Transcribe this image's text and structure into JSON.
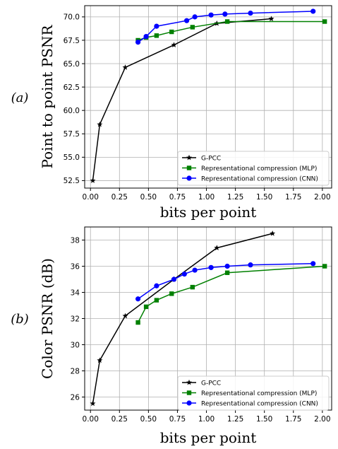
{
  "chart_data": [
    {
      "type": "line",
      "panel_label": "(a)",
      "xlabel": "bits per point",
      "ylabel": "Point to point PSNR",
      "xlim": [
        -0.05,
        2.08
      ],
      "ylim": [
        51.7,
        71.2
      ],
      "xticks": [
        0.0,
        0.25,
        0.5,
        0.75,
        1.0,
        1.25,
        1.5,
        1.75,
        2.0
      ],
      "xtick_labels": [
        "0.00",
        "0.25",
        "0.50",
        "0.75",
        "1.00",
        "1.25",
        "1.50",
        "1.75",
        "2.00"
      ],
      "yticks": [
        52.5,
        55.0,
        57.5,
        60.0,
        62.5,
        65.0,
        67.5,
        70.0
      ],
      "ytick_labels": [
        "52.5",
        "55.0",
        "57.5",
        "60.0",
        "62.5",
        "65.0",
        "67.5",
        "70.0"
      ],
      "grid": true,
      "legend_position": "lower-right",
      "series": [
        {
          "name": "G-PCC",
          "color": "#000000",
          "marker": "star",
          "x": [
            0.02,
            0.08,
            0.3,
            0.72,
            1.09,
            1.56
          ],
          "y": [
            52.5,
            58.5,
            64.6,
            67.0,
            69.3,
            69.8
          ]
        },
        {
          "name": "Representational compression (MLP)",
          "color": "#008000",
          "marker": "square",
          "x": [
            0.41,
            0.48,
            0.57,
            0.7,
            0.88,
            1.18,
            2.02
          ],
          "y": [
            67.5,
            67.8,
            68.0,
            68.4,
            68.9,
            69.5,
            69.5
          ]
        },
        {
          "name": "Representational compression (CNN)",
          "color": "#0000ff",
          "marker": "circle",
          "x": [
            0.41,
            0.48,
            0.57,
            0.83,
            0.9,
            1.04,
            1.16,
            1.38,
            1.92
          ],
          "y": [
            67.3,
            67.9,
            69.0,
            69.6,
            70.0,
            70.2,
            70.3,
            70.4,
            70.6
          ]
        }
      ]
    },
    {
      "type": "line",
      "panel_label": "(b)",
      "xlabel": "bits per point",
      "ylabel": "Color PSNR (dB)",
      "xlim": [
        -0.05,
        2.08
      ],
      "ylim": [
        25.0,
        39.0
      ],
      "xticks": [
        0.0,
        0.25,
        0.5,
        0.75,
        1.0,
        1.25,
        1.5,
        1.75,
        2.0
      ],
      "xtick_labels": [
        "0.00",
        "0.25",
        "0.50",
        "0.75",
        "1.00",
        "1.25",
        "1.50",
        "1.75",
        "2.00"
      ],
      "yticks": [
        26,
        28,
        30,
        32,
        34,
        36,
        38
      ],
      "ytick_labels": [
        "26",
        "28",
        "30",
        "32",
        "34",
        "36",
        "38"
      ],
      "grid": true,
      "legend_position": "lower-right",
      "series": [
        {
          "name": "G-PCC",
          "color": "#000000",
          "marker": "star",
          "x": [
            0.02,
            0.08,
            0.3,
            0.72,
            1.09,
            1.57
          ],
          "y": [
            25.5,
            28.8,
            32.2,
            35.0,
            37.4,
            38.5
          ]
        },
        {
          "name": "Representational compression (MLP)",
          "color": "#008000",
          "marker": "square",
          "x": [
            0.41,
            0.48,
            0.57,
            0.7,
            0.88,
            1.18,
            2.02
          ],
          "y": [
            31.7,
            32.9,
            33.4,
            33.9,
            34.4,
            35.5,
            36.0
          ]
        },
        {
          "name": "Representational compression (CNN)",
          "color": "#0000ff",
          "marker": "circle",
          "x": [
            0.41,
            0.57,
            0.72,
            0.81,
            0.9,
            1.04,
            1.18,
            1.38,
            1.92
          ],
          "y": [
            33.5,
            34.5,
            35.0,
            35.4,
            35.7,
            35.9,
            36.0,
            36.1,
            36.2
          ]
        }
      ]
    }
  ]
}
